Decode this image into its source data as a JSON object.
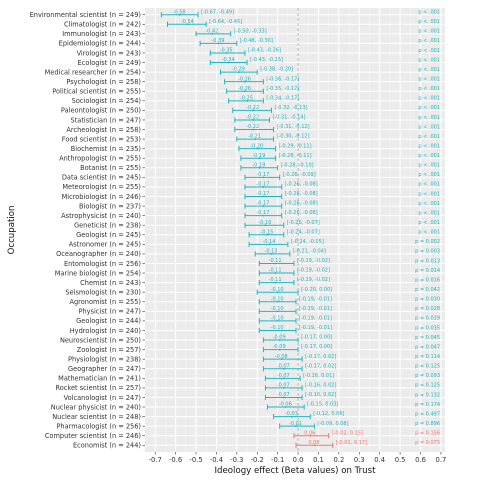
{
  "chart_data": {
    "type": "forest",
    "xlabel": "Ideology effect (Beta values) on Trust",
    "ylabel": "Occupation",
    "xlim": [
      -0.75,
      0.72
    ],
    "x_ticks": [
      "-0.7",
      "-0.6",
      "-0.5",
      "-0.4",
      "-0.3",
      "-0.2",
      "-0.1",
      "0.0",
      "0.1",
      "0.2",
      "0.3",
      "0.4",
      "0.5",
      "0.6",
      "0.7"
    ],
    "grid": true,
    "reference_line": 0,
    "colors": {
      "significant": "#21b5bf",
      "not_significant": "#f2766d",
      "panel_bg": "#ebebeb",
      "grid": "#ffffff"
    },
    "rows": [
      {
        "label": "Environmental scientist (n = 249)",
        "beta": -0.58,
        "lo": -0.67,
        "hi": -0.49,
        "est": "-0.58",
        "ci": "[-0.67, -0.49]",
        "p": "p < .001",
        "sig": true
      },
      {
        "label": "Climatologist (n = 242)",
        "beta": -0.54,
        "lo": -0.64,
        "hi": -0.45,
        "est": "-0.54",
        "ci": "[-0.64, -0.45]",
        "p": "p < .001",
        "sig": true
      },
      {
        "label": "Immunologist (n = 243)",
        "beta": -0.42,
        "lo": -0.5,
        "hi": -0.33,
        "est": "-0.42",
        "ci": "[-0.50, -0.33]",
        "p": "p < .001",
        "sig": true
      },
      {
        "label": "Epidemiologist (n = 244)",
        "beta": -0.39,
        "lo": -0.48,
        "hi": -0.3,
        "est": "-0.39",
        "ci": "[-0.48, -0.30]",
        "p": "p < .001",
        "sig": true
      },
      {
        "label": "Virologist (n = 243)",
        "beta": -0.35,
        "lo": -0.43,
        "hi": -0.26,
        "est": "-0.35",
        "ci": "[-0.43, -0.26]",
        "p": "p < .001",
        "sig": true
      },
      {
        "label": "Ecologist (n = 249)",
        "beta": -0.34,
        "lo": -0.43,
        "hi": -0.25,
        "est": "-0.34",
        "ci": "[-0.43, -0.25]",
        "p": "p < .001",
        "sig": true
      },
      {
        "label": "Medical researcher (n = 254)",
        "beta": -0.29,
        "lo": -0.38,
        "hi": -0.2,
        "est": "-0.29",
        "ci": "[-0.38, -0.20]",
        "p": "p < .001",
        "sig": true
      },
      {
        "label": "Psychologist (n = 258)",
        "beta": -0.26,
        "lo": -0.36,
        "hi": -0.17,
        "est": "-0.26",
        "ci": "[-0.36, -0.17]",
        "p": "p < .001",
        "sig": true
      },
      {
        "label": "Political scientist (n = 255)",
        "beta": -0.26,
        "lo": -0.35,
        "hi": -0.17,
        "est": "-0.26",
        "ci": "[-0.35, -0.17]",
        "p": "p < .001",
        "sig": true
      },
      {
        "label": "Sociologist (n = 254)",
        "beta": -0.25,
        "lo": -0.34,
        "hi": -0.17,
        "est": "-0.25",
        "ci": "[-0.34, -0.17]",
        "p": "p < .001",
        "sig": true
      },
      {
        "label": "Paleontologist (n = 250)",
        "beta": -0.22,
        "lo": -0.32,
        "hi": -0.13,
        "est": "-0.22",
        "ci": "[-0.32, -0.13]",
        "p": "p < .001",
        "sig": true
      },
      {
        "label": "Statistician (n = 247)",
        "beta": -0.22,
        "lo": -0.31,
        "hi": -0.14,
        "est": "-0.22",
        "ci": "[-0.31, -0.14]",
        "p": "p < .001",
        "sig": true
      },
      {
        "label": "Archeologist (n = 258)",
        "beta": -0.22,
        "lo": -0.31,
        "hi": -0.12,
        "est": "-0.22",
        "ci": "[-0.31, -0.12]",
        "p": "p < .001",
        "sig": true
      },
      {
        "label": "Food scientist (n = 253)",
        "beta": -0.21,
        "lo": -0.3,
        "hi": -0.12,
        "est": "-0.21",
        "ci": "[-0.30, -0.12]",
        "p": "p < .001",
        "sig": true
      },
      {
        "label": "Biochemist (n = 235)",
        "beta": -0.2,
        "lo": -0.29,
        "hi": -0.11,
        "est": "-0.20",
        "ci": "[-0.29, -0.11]",
        "p": "p < .001",
        "sig": true
      },
      {
        "label": "Anthropologist (n = 255)",
        "beta": -0.19,
        "lo": -0.28,
        "hi": -0.11,
        "est": "-0.19",
        "ci": "[-0.28, -0.11]",
        "p": "p < .001",
        "sig": true
      },
      {
        "label": "Botanist (n = 255)",
        "beta": -0.19,
        "lo": -0.28,
        "hi": -0.1,
        "est": "-0.19",
        "ci": "[-0.28, -0.10]",
        "p": "p < .001",
        "sig": true
      },
      {
        "label": "Data scientist (n = 245)",
        "beta": -0.17,
        "lo": -0.26,
        "hi": -0.09,
        "est": "-0.17",
        "ci": "[-0.26, -0.09]",
        "p": "p < .001",
        "sig": true
      },
      {
        "label": "Meteorologist (n = 255)",
        "beta": -0.17,
        "lo": -0.26,
        "hi": -0.08,
        "est": "-0.17",
        "ci": "[-0.26, -0.08]",
        "p": "p < .001",
        "sig": true
      },
      {
        "label": "Microbiologist (n = 246)",
        "beta": -0.17,
        "lo": -0.26,
        "hi": -0.08,
        "est": "-0.17",
        "ci": "[-0.26, -0.08]",
        "p": "p < .001",
        "sig": true
      },
      {
        "label": "Biologist (n = 237)",
        "beta": -0.17,
        "lo": -0.26,
        "hi": -0.08,
        "est": "-0.17",
        "ci": "[-0.26, -0.08]",
        "p": "p < .001",
        "sig": true
      },
      {
        "label": "Astrophysicist (n = 240)",
        "beta": -0.17,
        "lo": -0.26,
        "hi": -0.08,
        "est": "-0.17",
        "ci": "[-0.26, -0.08]",
        "p": "p < .001",
        "sig": true
      },
      {
        "label": "Geneticist (n = 238)",
        "beta": -0.16,
        "lo": -0.26,
        "hi": -0.07,
        "est": "-0.16",
        "ci": "[-0.26, -0.07]",
        "p": "p < .001",
        "sig": true
      },
      {
        "label": "Geologist (n = 245)",
        "beta": -0.15,
        "lo": -0.24,
        "hi": -0.07,
        "est": "-0.15",
        "ci": "[-0.24, -0.07]",
        "p": "p < .001",
        "sig": true
      },
      {
        "label": "Astronomer (n = 245)",
        "beta": -0.14,
        "lo": -0.24,
        "hi": -0.05,
        "est": "-0.14",
        "ci": "[-0.24, -0.05]",
        "p": "p = 0.002",
        "sig": true
      },
      {
        "label": "Oceanographer (n = 240)",
        "beta": -0.13,
        "lo": -0.21,
        "hi": -0.04,
        "est": "-0.13",
        "ci": "[-0.21, -0.04]",
        "p": "p = 0.003",
        "sig": true
      },
      {
        "label": "Entomologist (n = 256)",
        "beta": -0.11,
        "lo": -0.19,
        "hi": -0.02,
        "est": "-0.11",
        "ci": "[-0.19, -0.02]",
        "p": "p = 0.013",
        "sig": true
      },
      {
        "label": "Marine biologist (n = 254)",
        "beta": -0.11,
        "lo": -0.19,
        "hi": -0.02,
        "est": "-0.11",
        "ci": "[-0.19, -0.02]",
        "p": "p = 0.014",
        "sig": true
      },
      {
        "label": "Chemist (n = 243)",
        "beta": -0.11,
        "lo": -0.19,
        "hi": -0.02,
        "est": "-0.11",
        "ci": "[-0.19, -0.02]",
        "p": "p = 0.016",
        "sig": true
      },
      {
        "label": "Seismologist (n = 230)",
        "beta": -0.1,
        "lo": -0.2,
        "hi": 0.0,
        "est": "-0.10",
        "ci": "[-0.20, 0.00]",
        "p": "p = 0.042",
        "sig": true
      },
      {
        "label": "Agronomist (n = 255)",
        "beta": -0.1,
        "lo": -0.19,
        "hi": -0.01,
        "est": "-0.10",
        "ci": "[-0.19, -0.01]",
        "p": "p = 0.030",
        "sig": true
      },
      {
        "label": "Physicist (n = 247)",
        "beta": -0.1,
        "lo": -0.19,
        "hi": -0.01,
        "est": "-0.10",
        "ci": "[-0.19, -0.01]",
        "p": "p = 0.028",
        "sig": true
      },
      {
        "label": "Geologist (n = 244)",
        "beta": -0.1,
        "lo": -0.19,
        "hi": -0.01,
        "est": "-0.10",
        "ci": "[-0.19, -0.01]",
        "p": "p = 0.039",
        "sig": true
      },
      {
        "label": "Hydrologist (n = 240)",
        "beta": -0.1,
        "lo": -0.19,
        "hi": -0.01,
        "est": "-0.10",
        "ci": "[-0.19, -0.01]",
        "p": "p = 0.035",
        "sig": true
      },
      {
        "label": "Neuroscientist (n = 250)",
        "beta": -0.09,
        "lo": -0.17,
        "hi": 0.0,
        "est": "-0.09",
        "ci": "[-0.17, 0.00]",
        "p": "p = 0.045",
        "sig": true
      },
      {
        "label": "Zoologist (n = 257)",
        "beta": -0.09,
        "lo": -0.17,
        "hi": 0.0,
        "est": "-0.09",
        "ci": "[-0.17, 0.00]",
        "p": "p = 0.047",
        "sig": true
      },
      {
        "label": "Physiologist (n = 238)",
        "beta": -0.08,
        "lo": -0.17,
        "hi": 0.02,
        "est": "-0.08",
        "ci": "[-0.17, 0.02]",
        "p": "p = 0.114",
        "sig": true
      },
      {
        "label": "Geographer (n = 247)",
        "beta": -0.07,
        "lo": -0.17,
        "hi": 0.02,
        "est": "-0.07",
        "ci": "[-0.17, 0.02]",
        "p": "p = 0.125",
        "sig": true
      },
      {
        "label": "Mathematician (n = 241)",
        "beta": -0.07,
        "lo": -0.16,
        "hi": 0.01,
        "est": "-0.07",
        "ci": "[-0.16, 0.01]",
        "p": "p = 0.093",
        "sig": true
      },
      {
        "label": "Rocket scientist (n = 257)",
        "beta": -0.07,
        "lo": -0.16,
        "hi": 0.02,
        "est": "-0.07",
        "ci": "[-0.16, 0.02]",
        "p": "p = 0.125",
        "sig": true
      },
      {
        "label": "Volcanologist (n = 247)",
        "beta": -0.07,
        "lo": -0.16,
        "hi": 0.02,
        "est": "-0.07",
        "ci": "[-0.16, 0.02]",
        "p": "p = 0.132",
        "sig": true
      },
      {
        "label": "Nuclear physicist (n = 240)",
        "beta": -0.06,
        "lo": -0.15,
        "hi": 0.03,
        "est": "-0.06",
        "ci": "[-0.15, 0.03]",
        "p": "p = 0.174",
        "sig": true
      },
      {
        "label": "Nuclear scientist (n = 248)",
        "beta": -0.03,
        "lo": -0.12,
        "hi": 0.06,
        "est": "-0.03",
        "ci": "[-0.12, 0.06]",
        "p": "p = 0.497",
        "sig": true
      },
      {
        "label": "Pharmacologist (n = 256)",
        "beta": -0.01,
        "lo": -0.09,
        "hi": 0.08,
        "est": "-0.01",
        "ci": "[-0.09, 0.08]",
        "p": "p = 0.896",
        "sig": true
      },
      {
        "label": "Computer scientist (n = 246)",
        "beta": 0.06,
        "lo": -0.02,
        "hi": 0.15,
        "est": "0.06",
        "ci": "[-0.02, 0.15]",
        "p": "p = 0.156",
        "sig": false
      },
      {
        "label": "Economist (n = 244)",
        "beta": 0.08,
        "lo": -0.01,
        "hi": 0.17,
        "est": "0.08",
        "ci": "[-0.01, 0.17]",
        "p": "p = 0.075",
        "sig": false
      }
    ]
  }
}
